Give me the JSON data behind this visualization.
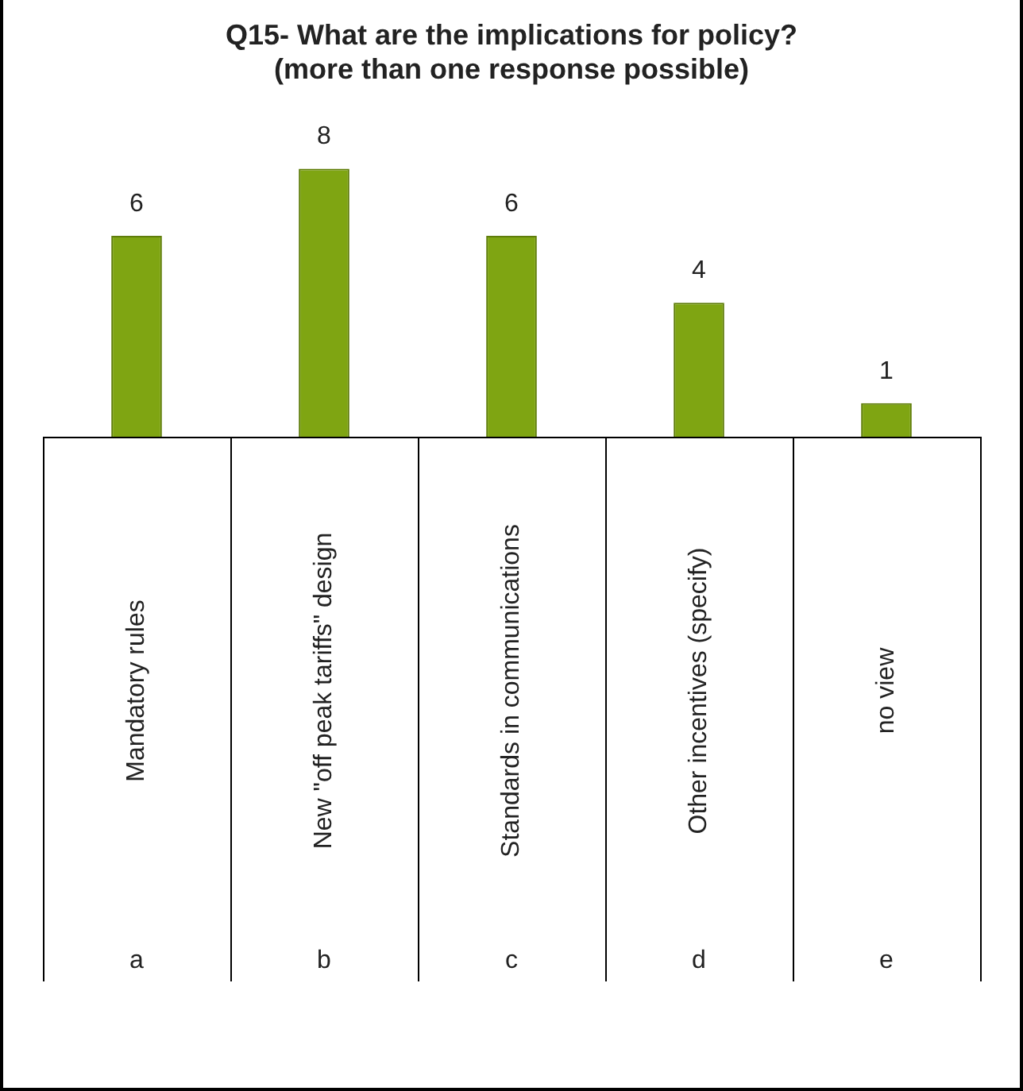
{
  "chart_data": {
    "type": "bar",
    "title": "Q15- What are the implications for policy?\n(more than one response possible)",
    "categories": [
      "Mandatory rules",
      "New \"off peak tariffs\" design",
      "Standards in communications",
      "Other incentives (specify)",
      "no view"
    ],
    "values": [
      6,
      8,
      6,
      4,
      1
    ],
    "color": "#7fa512",
    "data_labels": true,
    "annotations": [
      "a",
      "b",
      "c",
      "d",
      "e"
    ]
  }
}
